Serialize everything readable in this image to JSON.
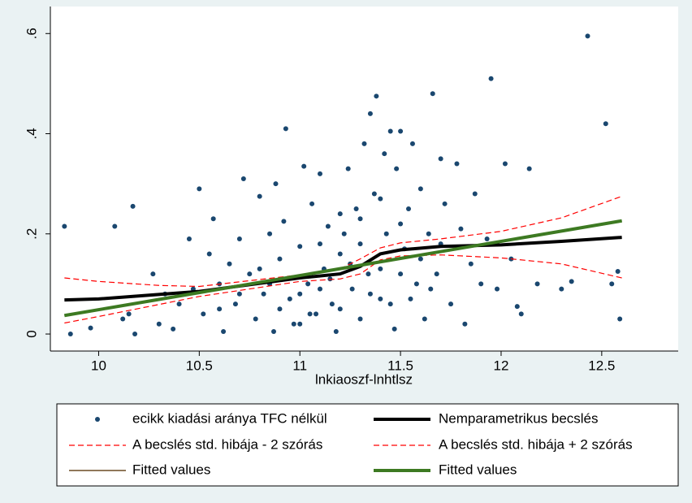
{
  "chart_data": {
    "type": "scatter",
    "x_label": "lnkiaoszf-lnhtlsz",
    "xlim": [
      9.76,
      12.88
    ],
    "xticks": [
      10,
      10.5,
      11,
      11.5,
      12,
      12.5
    ],
    "ylim": [
      -0.034,
      0.654
    ],
    "yticks": [
      {
        "value": 0,
        "label": "0"
      },
      {
        "value": 0.2,
        "label": ".2"
      },
      {
        "value": 0.4,
        "label": ".4"
      },
      {
        "value": 0.6,
        "label": ".6"
      }
    ],
    "legend_position": "bottom",
    "series": [
      {
        "name": "ecikk kiadási aránya TFC nélkül",
        "color": "#1a476f",
        "style": "marker",
        "x": [
          9.83,
          9.86,
          9.96,
          10.08,
          10.17,
          10.18,
          10.15,
          10.12,
          10.27,
          10.3,
          10.33,
          10.37,
          10.4,
          10.45,
          10.47,
          10.5,
          10.52,
          10.55,
          10.57,
          10.6,
          10.62,
          10.65,
          10.68,
          10.7,
          10.72,
          10.75,
          10.78,
          10.8,
          10.82,
          10.85,
          10.87,
          10.88,
          10.9,
          10.92,
          10.93,
          10.95,
          10.97,
          11.0,
          11.02,
          11.04,
          11.06,
          11.08,
          11.1,
          11.12,
          11.14,
          11.16,
          11.18,
          11.2,
          11.22,
          11.24,
          11.26,
          11.28,
          11.3,
          11.32,
          11.34,
          11.35,
          11.37,
          11.38,
          11.4,
          11.42,
          11.43,
          11.45,
          11.47,
          11.48,
          11.5,
          11.52,
          11.54,
          11.56,
          11.58,
          11.6,
          11.62,
          11.64,
          11.66,
          11.68,
          11.7,
          11.72,
          11.75,
          11.78,
          11.8,
          11.82,
          11.85,
          11.87,
          11.9,
          11.93,
          11.95,
          11.98,
          12.02,
          12.05,
          12.08,
          12.1,
          12.14,
          12.18,
          12.3,
          12.35,
          12.43,
          12.52,
          12.58,
          12.59,
          12.55,
          10.9,
          11.0,
          11.05,
          11.1,
          11.15,
          11.2,
          11.25,
          11.3,
          11.35,
          11.4,
          11.45,
          11.5,
          11.55,
          11.6,
          11.65,
          11.7,
          10.6,
          10.7,
          10.8,
          10.85,
          11.3,
          11.4,
          11.5,
          11.1,
          11.0,
          11.2
        ],
        "values": [
          0.215,
          0,
          0.012,
          0.215,
          0.255,
          0,
          0.04,
          0.03,
          0.12,
          0.02,
          0.08,
          0.01,
          0.06,
          0.19,
          0.09,
          0.29,
          0.04,
          0.16,
          0.23,
          0.1,
          0.005,
          0.14,
          0.06,
          0.19,
          0.31,
          0.12,
          0.03,
          0.275,
          0.08,
          0.2,
          0.005,
          0.3,
          0.15,
          0.225,
          0.41,
          0.07,
          0.02,
          0.175,
          0.335,
          0.1,
          0.26,
          0.04,
          0.32,
          0.13,
          0.215,
          0.06,
          0.005,
          0.16,
          0.2,
          0.33,
          0.09,
          0.25,
          0.03,
          0.38,
          0.12,
          0.44,
          0.28,
          0.475,
          0.07,
          0.36,
          0.2,
          0.405,
          0.01,
          0.33,
          0.405,
          0.17,
          0.25,
          0.38,
          0.1,
          0.29,
          0.03,
          0.2,
          0.48,
          0.12,
          0.35,
          0.26,
          0.06,
          0.34,
          0.21,
          0.02,
          0.14,
          0.28,
          0.1,
          0.19,
          0.51,
          0.09,
          0.34,
          0.15,
          0.055,
          0.04,
          0.33,
          0.1,
          0.09,
          0.105,
          0.595,
          0.42,
          0.125,
          0.03,
          0.1,
          0.05,
          0.08,
          0.04,
          0.09,
          0.11,
          0.05,
          0.14,
          0.18,
          0.08,
          0.13,
          0.06,
          0.12,
          0.07,
          0.15,
          0.09,
          0.18,
          0.05,
          0.08,
          0.13,
          0.1,
          0.23,
          0.27,
          0.22,
          0.18,
          0.02,
          0.24
        ]
      },
      {
        "name": "Nemparametrikus becslés",
        "color": "#000000",
        "style": "solid",
        "width": 4,
        "x": [
          9.83,
          10,
          10.5,
          11,
          11.2,
          11.3,
          11.4,
          11.5,
          11.7,
          12,
          12.3,
          12.6
        ],
        "values": [
          0.068,
          0.07,
          0.085,
          0.112,
          0.12,
          0.135,
          0.16,
          0.168,
          0.175,
          0.178,
          0.185,
          0.193
        ]
      },
      {
        "name": "A becslés std. hibája - 2 szórás",
        "color": "#ff0000",
        "style": "dashed",
        "width": 1.2,
        "x": [
          9.83,
          10,
          10.5,
          11,
          11.2,
          11.3,
          11.4,
          11.5,
          11.7,
          12,
          12.3,
          12.6
        ],
        "values": [
          0.022,
          0.035,
          0.075,
          0.105,
          0.11,
          0.12,
          0.148,
          0.156,
          0.158,
          0.152,
          0.14,
          0.112
        ]
      },
      {
        "name": "A becslés std. hibája + 2 szórás",
        "color": "#ff0000",
        "style": "dashed",
        "width": 1.2,
        "x": [
          9.83,
          10,
          10.3,
          10.5,
          11,
          11.2,
          11.3,
          11.4,
          11.5,
          11.7,
          12,
          12.3,
          12.6
        ],
        "values": [
          0.112,
          0.105,
          0.097,
          0.095,
          0.118,
          0.13,
          0.15,
          0.172,
          0.182,
          0.19,
          0.205,
          0.232,
          0.275
        ]
      },
      {
        "name": "Fitted values",
        "color": "#6b4c24",
        "style": "solid",
        "width": 1.5,
        "x": [
          9.83,
          12.6
        ],
        "values": [
          0.037,
          0.226
        ]
      },
      {
        "name": "Fitted values",
        "color": "#3d7a22",
        "style": "solid",
        "width": 4,
        "x": [
          9.83,
          12.6
        ],
        "values": [
          0.037,
          0.226
        ]
      }
    ]
  }
}
